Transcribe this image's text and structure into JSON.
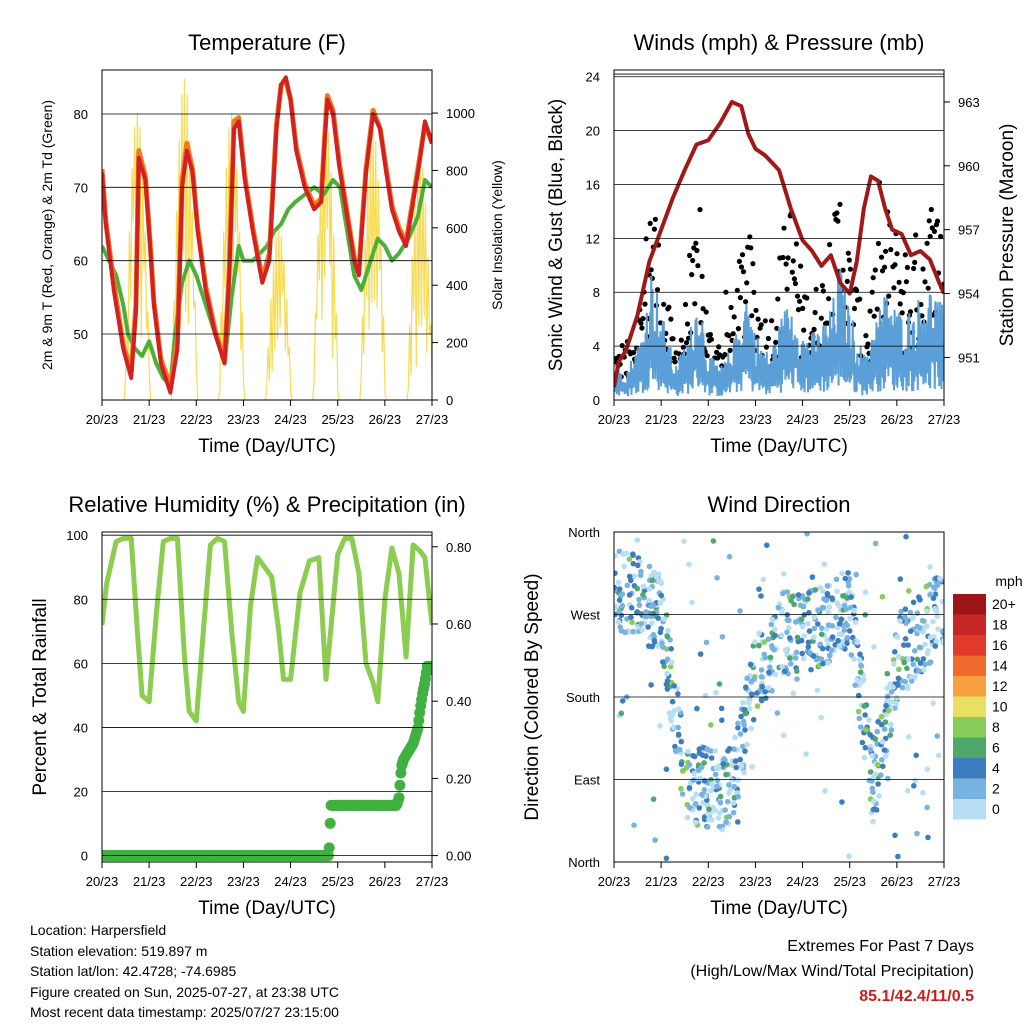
{
  "colors": {
    "temp_red": "#d42020",
    "temp_orange": "#f07a20",
    "dewpoint_green": "#4caf3a",
    "solar_yellow": "#f6dc55",
    "gust_black": "#000000",
    "wind_blue": "#5a9fd8",
    "pressure_maroon": "#a01818",
    "rh_green": "#8ccc50",
    "precip_green": "#40b040",
    "extremes_red": "#c81e1e"
  },
  "chart_data": [
    {
      "id": "temperature",
      "type": "line",
      "title": "Temperature (F)",
      "xlabel": "Time (Day/UTC)",
      "ylabel": "2m & 9m T (Red, Orange) & 2m Td (Green)",
      "ylabel_right": "Solar Insolation (Yellow)",
      "xticks": [
        "20/23",
        "21/23",
        "22/23",
        "23/23",
        "24/23",
        "25/23",
        "26/23",
        "27/23"
      ],
      "ylim": [
        41,
        86
      ],
      "yticks": [
        50,
        60,
        70,
        80
      ],
      "ylim_right": [
        0,
        1150
      ],
      "yticks_right": [
        0,
        200,
        400,
        600,
        800,
        1000
      ],
      "grid": "horizontal",
      "series": [
        {
          "name": "2m T",
          "color": "#d42020",
          "axis": "left",
          "x": [
            0,
            0.08,
            0.25,
            0.45,
            0.62,
            0.72,
            0.78,
            0.92,
            1.02,
            1.1,
            1.25,
            1.45,
            1.6,
            1.7,
            1.8,
            1.92,
            2.03,
            2.2,
            2.4,
            2.6,
            2.7,
            2.8,
            2.9,
            3.03,
            3.2,
            3.4,
            3.55,
            3.7,
            3.8,
            3.9,
            4.0,
            4.12,
            4.3,
            4.5,
            4.65,
            4.72,
            4.78,
            4.9,
            5.03,
            5.2,
            5.35,
            5.45,
            5.5,
            5.6,
            5.75,
            5.9,
            6.03,
            6.15,
            6.3,
            6.45,
            6.6,
            6.75,
            6.85,
            6.95,
            7.0
          ],
          "y": [
            72,
            65,
            56,
            48,
            44,
            53,
            74,
            71,
            62,
            54,
            46,
            42,
            48,
            70,
            75,
            72,
            64,
            56,
            50,
            46,
            58,
            78,
            79,
            71,
            64,
            57,
            60,
            78,
            84,
            85,
            82,
            75,
            70,
            67,
            68,
            76,
            82,
            80,
            73,
            66,
            60,
            58,
            63,
            72,
            80,
            78,
            72,
            67,
            64,
            62,
            68,
            74,
            79,
            77,
            76
          ]
        },
        {
          "name": "9m T",
          "color": "#f07a20",
          "axis": "left",
          "x": [
            0,
            0.08,
            0.25,
            0.45,
            0.62,
            0.72,
            0.78,
            0.92,
            1.02,
            1.1,
            1.25,
            1.45,
            1.6,
            1.7,
            1.8,
            1.92,
            2.03,
            2.2,
            2.4,
            2.6,
            2.7,
            2.8,
            2.9,
            3.03,
            3.2,
            3.4,
            3.55,
            3.7,
            3.8,
            3.9,
            4.0,
            4.12,
            4.3,
            4.5,
            4.65,
            4.72,
            4.78,
            4.9,
            5.03,
            5.2,
            5.35,
            5.45,
            5.5,
            5.6,
            5.75,
            5.9,
            6.03,
            6.15,
            6.3,
            6.45,
            6.6,
            6.75,
            6.85,
            6.95,
            7.0
          ],
          "y": [
            72.5,
            65.5,
            57,
            48.5,
            45,
            54,
            75,
            71.5,
            62.5,
            54.5,
            46.5,
            43,
            49,
            71,
            76,
            72.5,
            64.5,
            56.5,
            50.5,
            46.5,
            59,
            79,
            79.5,
            71.5,
            64.5,
            57.5,
            61,
            78.5,
            84,
            84.5,
            82,
            75.5,
            70.5,
            67.5,
            68.5,
            76.5,
            82.5,
            80.5,
            73.5,
            66.5,
            60.5,
            58.5,
            63.5,
            72.5,
            80.5,
            78,
            72.5,
            67.5,
            64.5,
            62.5,
            68.5,
            74.5,
            78.5,
            77,
            76
          ]
        },
        {
          "name": "2m Td",
          "color": "#4caf3a",
          "axis": "left",
          "x": [
            0,
            0.15,
            0.3,
            0.45,
            0.55,
            0.7,
            0.85,
            1.0,
            1.15,
            1.3,
            1.45,
            1.55,
            1.7,
            1.85,
            2.0,
            2.1,
            2.3,
            2.5,
            2.6,
            2.75,
            2.9,
            3.0,
            3.2,
            3.35,
            3.5,
            3.65,
            3.8,
            3.95,
            4.1,
            4.3,
            4.5,
            4.7,
            4.9,
            5.05,
            5.2,
            5.35,
            5.5,
            5.7,
            5.85,
            6.0,
            6.15,
            6.3,
            6.5,
            6.7,
            6.85,
            7.0
          ],
          "y": [
            62,
            60,
            58,
            54,
            50,
            48,
            47,
            49,
            46,
            44,
            43,
            50,
            57,
            60,
            58,
            56,
            52,
            48,
            46,
            55,
            62,
            60,
            60,
            61,
            62,
            64,
            65,
            67,
            68,
            69,
            70,
            69,
            71,
            70,
            64,
            58,
            56,
            60,
            63,
            62,
            60,
            61,
            63,
            66,
            71,
            70
          ]
        },
        {
          "name": "Solar Insolation",
          "color": "#f6dc55",
          "axis": "right",
          "day_peaks": [
            {
              "x": 0.75,
              "y": 1000
            },
            {
              "x": 1.75,
              "y": 1120
            },
            {
              "x": 2.75,
              "y": 1000
            },
            {
              "x": 3.75,
              "y": 600
            },
            {
              "x": 4.75,
              "y": 980
            },
            {
              "x": 5.75,
              "y": 950
            },
            {
              "x": 6.75,
              "y": 850
            }
          ]
        }
      ]
    },
    {
      "id": "winds",
      "type": "scatter",
      "title": "Winds (mph) & Pressure (mb)",
      "xlabel": "Time (Day/UTC)",
      "ylabel": "Sonic Wind & Gust (Blue, Black)",
      "ylabel_right": "Station Pressure (Maroon)",
      "xticks": [
        "20/23",
        "21/23",
        "22/23",
        "23/23",
        "24/23",
        "25/23",
        "26/23",
        "27/23"
      ],
      "ylim": [
        0,
        24.5
      ],
      "yticks": [
        0,
        4,
        8,
        12,
        16,
        20,
        24
      ],
      "ylim_right": [
        949.0,
        964.5
      ],
      "yticks_right": [
        951,
        954,
        957,
        960,
        963
      ],
      "grid": "horizontal",
      "series": [
        {
          "name": "Sonic Wind",
          "color": "#5a9fd8",
          "axis": "left",
          "mean_profile": {
            "x": [
              0,
              0.3,
              0.6,
              0.8,
              1.0,
              1.3,
              1.6,
              1.8,
              2.0,
              2.3,
              2.6,
              2.8,
              3.0,
              3.3,
              3.6,
              3.8,
              4.0,
              4.3,
              4.6,
              4.8,
              5.0,
              5.3,
              5.6,
              5.8,
              6.0,
              6.3,
              6.6,
              6.8,
              7.0
            ],
            "y": [
              1.5,
              1.5,
              3,
              6,
              4,
              1.5,
              3,
              5,
              2,
              1.5,
              3,
              5,
              3,
              2,
              4,
              4.5,
              3,
              3,
              4,
              6,
              4,
              2,
              4,
              5,
              4,
              4,
              5,
              5,
              4
            ]
          }
        },
        {
          "name": "Gust",
          "color": "#000000",
          "axis": "left",
          "mean_profile": {
            "x": [
              0,
              0.3,
              0.6,
              0.8,
              1.0,
              1.3,
              1.6,
              1.8,
              2.0,
              2.3,
              2.6,
              2.8,
              3.0,
              3.3,
              3.6,
              3.8,
              4.0,
              4.3,
              4.6,
              4.8,
              5.0,
              5.3,
              5.6,
              5.8,
              6.0,
              6.3,
              6.6,
              6.8,
              7.0
            ],
            "y": [
              3,
              3,
              6,
              13,
              7,
              3,
              6,
              10,
              4,
              3,
              6,
              10,
              6,
              4,
              9,
              11,
              6,
              6,
              8,
              12,
              8,
              4,
              8,
              10,
              9,
              8,
              10,
              11,
              9
            ]
          }
        },
        {
          "name": "Station Pressure",
          "color": "#a01818",
          "axis": "right",
          "x": [
            0,
            0.1,
            0.25,
            0.5,
            0.75,
            1.0,
            1.25,
            1.5,
            1.75,
            2.0,
            2.25,
            2.5,
            2.7,
            2.85,
            3.0,
            3.2,
            3.5,
            3.75,
            4.0,
            4.2,
            4.4,
            4.6,
            4.8,
            5.0,
            5.15,
            5.3,
            5.45,
            5.6,
            5.75,
            5.9,
            6.1,
            6.3,
            6.5,
            6.7,
            6.9,
            7.0
          ],
          "y": [
            949.6,
            950.8,
            951.3,
            953.0,
            955.5,
            957.0,
            958.5,
            959.8,
            961.0,
            961.2,
            962.0,
            963.0,
            962.8,
            961.5,
            960.8,
            960.5,
            959.8,
            958.0,
            956.5,
            956.0,
            955.3,
            955.8,
            954.5,
            954.0,
            955.5,
            958.0,
            959.5,
            959.3,
            958.0,
            957.0,
            956.8,
            955.8,
            956.0,
            955.6,
            954.5,
            954.0
          ]
        }
      ]
    },
    {
      "id": "humidity",
      "type": "line",
      "title": "Relative Humidity (%) & Precipitation (in)",
      "xlabel": "Time (Day/UTC)",
      "ylabel": "Percent & Total Rainfall",
      "xticks": [
        "20/23",
        "21/23",
        "22/23",
        "23/23",
        "24/23",
        "25/23",
        "26/23",
        "27/23"
      ],
      "ylim": [
        -2,
        101
      ],
      "yticks": [
        0,
        20,
        40,
        60,
        80,
        100
      ],
      "ylim_right": [
        -0.0166,
        0.8383
      ],
      "yticks_right": [
        "0.00",
        "0.20",
        "0.40",
        "0.60",
        "0.80"
      ],
      "grid": "horizontal",
      "series": [
        {
          "name": "Relative Humidity",
          "color": "#8ccc50",
          "axis": "left",
          "x": [
            0,
            0.1,
            0.3,
            0.45,
            0.62,
            0.75,
            0.85,
            1.0,
            1.15,
            1.3,
            1.45,
            1.6,
            1.75,
            1.85,
            2.0,
            2.15,
            2.3,
            2.45,
            2.6,
            2.75,
            2.9,
            3.0,
            3.15,
            3.3,
            3.45,
            3.6,
            3.75,
            3.85,
            4.0,
            4.2,
            4.4,
            4.6,
            4.75,
            4.85,
            5.0,
            5.15,
            5.3,
            5.45,
            5.6,
            5.75,
            5.85,
            6.0,
            6.15,
            6.3,
            6.45,
            6.6,
            6.75,
            6.85,
            7.0
          ],
          "y": [
            72,
            85,
            98,
            99,
            99,
            70,
            50,
            48,
            75,
            98,
            99,
            99,
            62,
            45,
            42,
            70,
            97,
            99,
            98,
            70,
            48,
            45,
            78,
            93,
            90,
            87,
            70,
            55,
            55,
            82,
            92,
            93,
            55,
            70,
            94,
            99,
            99,
            88,
            60,
            54,
            48,
            80,
            96,
            88,
            62,
            97,
            95,
            93,
            72
          ]
        },
        {
          "name": "Total Precipitation",
          "color": "#40b040",
          "axis": "right",
          "x": [
            0,
            0.5,
            1.0,
            1.5,
            2.0,
            2.5,
            3.0,
            3.5,
            4.0,
            4.5,
            4.8,
            4.82,
            4.83,
            4.86,
            5.0,
            5.5,
            6.0,
            6.25,
            6.3,
            6.35,
            6.4,
            6.5,
            6.6,
            6.7,
            6.75,
            6.8,
            6.85,
            6.9,
            7.0
          ],
          "y": [
            0,
            0,
            0,
            0,
            0,
            0,
            0,
            0,
            0,
            0,
            0,
            0.02,
            0.06,
            0.13,
            0.13,
            0.13,
            0.13,
            0.13,
            0.15,
            0.23,
            0.25,
            0.27,
            0.29,
            0.33,
            0.38,
            0.42,
            0.45,
            0.49,
            0.49
          ]
        }
      ]
    },
    {
      "id": "direction",
      "type": "scatter",
      "title": "Wind Direction",
      "xlabel": "Time (Day/UTC)",
      "ylabel": "Direction (Colored By Speed)",
      "xticks": [
        "20/23",
        "21/23",
        "22/23",
        "23/23",
        "24/23",
        "25/23",
        "26/23",
        "27/23"
      ],
      "yticks": [
        "North",
        "East",
        "South",
        "West",
        "North"
      ],
      "ytick_values": [
        0,
        90,
        180,
        270,
        360
      ],
      "ylim": [
        0,
        360
      ],
      "grid": "horizontal",
      "colorbar": {
        "title": "mph",
        "labels": [
          "20+",
          "18",
          "16",
          "14",
          "12",
          "10",
          "8",
          "6",
          "4",
          "2",
          "0"
        ],
        "colors": [
          "#9c1518",
          "#c52626",
          "#e03a2c",
          "#f06a2e",
          "#f8a040",
          "#e8e060",
          "#8acc5a",
          "#4ea86a",
          "#3c7dc0",
          "#78b2e0",
          "#b8def4"
        ]
      },
      "series": [
        {
          "name": "direction_profile",
          "x": [
            0,
            0.5,
            1.0,
            1.5,
            2.0,
            2.5,
            3.0,
            3.5,
            4.0,
            4.5,
            5.0,
            5.5,
            6.0,
            6.5,
            7.0
          ],
          "y": [
            300,
            290,
            270,
            90,
            80,
            80,
            200,
            250,
            250,
            260,
            280,
            80,
            220,
            250,
            280
          ]
        }
      ]
    }
  ],
  "info": {
    "location": "Location: Harpersfield",
    "elevation": "Station elevation: 519.897 m",
    "latlon": "Station lat/lon: 42.4728; -74.6985",
    "created": "Figure created on Sun, 2025-07-27, at 23:38 UTC",
    "recent": "Most recent data timestamp: 2025/07/27 23:15:00"
  },
  "extremes": {
    "title": "Extremes For Past 7 Days",
    "subtitle": "(High/Low/Max Wind/Total Precipitation)",
    "value": "85.1/42.4/11/0.5"
  }
}
